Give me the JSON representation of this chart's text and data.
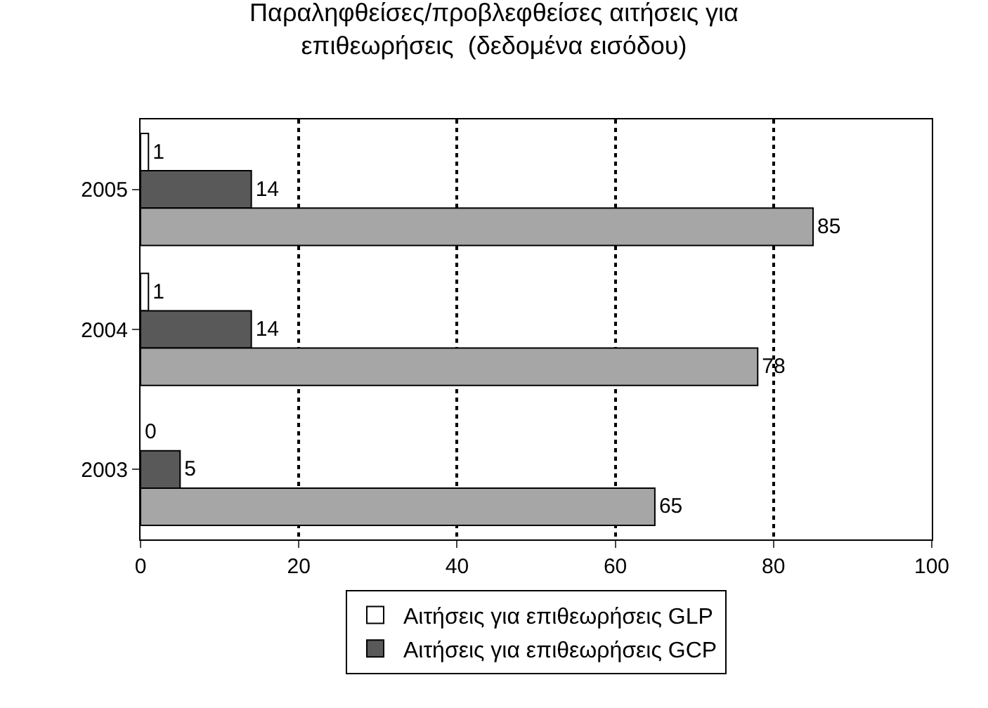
{
  "chart_data": {
    "type": "bar",
    "orientation": "horizontal",
    "title": "Παραληφθείσες/προβλεφθείσες αιτήσεις για\nεπιθεωρήσεις  (δεδομένα εισόδου)",
    "categories": [
      "2005",
      "2004",
      "2003"
    ],
    "series": [
      {
        "name": "Αιτήσεις για επιθεωρήσεις GLP",
        "color": "#ffffff",
        "values": [
          1,
          1,
          0
        ]
      },
      {
        "name": "Αιτήσεις για επιθεωρήσεις GCP",
        "color": "#595959",
        "values": [
          14,
          14,
          5
        ]
      },
      {
        "color": "#a6a6a6",
        "values": [
          85,
          78,
          65
        ]
      }
    ],
    "xlim": [
      0,
      100
    ],
    "xticks": [
      0,
      20,
      40,
      60,
      80,
      100
    ],
    "grid": "x",
    "legend": "bottom",
    "data_labels": true
  }
}
